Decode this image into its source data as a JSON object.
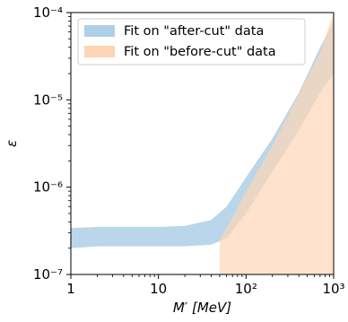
{
  "chart_data": {
    "type": "area",
    "title": "",
    "xlabel": "M′ [MeV]",
    "ylabel": "ε",
    "x_scale": "log",
    "y_scale": "log",
    "xlim": [
      1,
      1000
    ],
    "ylim": [
      1e-07,
      0.0001
    ],
    "x_ticks": [
      {
        "value": 1,
        "label": "1"
      },
      {
        "value": 10,
        "label": "10"
      },
      {
        "value": 100,
        "label": "10²"
      },
      {
        "value": 1000,
        "label": "10³"
      }
    ],
    "y_ticks": [
      {
        "value": 1e-07,
        "label": "10⁻⁷"
      },
      {
        "value": 1e-06,
        "label": "10⁻⁶"
      },
      {
        "value": 1e-05,
        "label": "10⁻⁵"
      },
      {
        "value": 0.0001,
        "label": "10⁻⁴"
      }
    ],
    "grid": false,
    "legend_position": "top-left",
    "series": [
      {
        "name": "Fit on \"after-cut\" data",
        "color": "#aecfe6",
        "x": [
          1,
          2,
          5,
          10,
          20,
          40,
          60,
          100,
          200,
          400,
          700,
          1000
        ],
        "y_lower": [
          2e-07,
          2.1e-07,
          2.1e-07,
          2.1e-07,
          2.1e-07,
          2.2e-07,
          2.6e-07,
          5e-07,
          1.5e-06,
          4.5e-06,
          1.2e-05,
          2e-05
        ],
        "y_upper": [
          3.4e-07,
          3.5e-07,
          3.5e-07,
          3.5e-07,
          3.6e-07,
          4.2e-07,
          6e-07,
          1.3e-06,
          3.6e-06,
          1.2e-05,
          4e-05,
          8e-05
        ]
      },
      {
        "name": "Fit on \"before-cut\" data",
        "color": "#fdd5b5",
        "x": [
          50,
          70,
          100,
          150,
          200,
          300,
          500,
          700,
          1000
        ],
        "y_lower": [
          1e-07,
          1e-07,
          1e-07,
          1e-07,
          1e-07,
          1e-07,
          1e-07,
          1e-07,
          1e-07
        ],
        "y_upper": [
          2.5e-07,
          4.5e-07,
          9e-07,
          1.8e-06,
          3e-06,
          6.5e-06,
          1.8e-05,
          3.5e-05,
          0.0001
        ]
      }
    ]
  }
}
